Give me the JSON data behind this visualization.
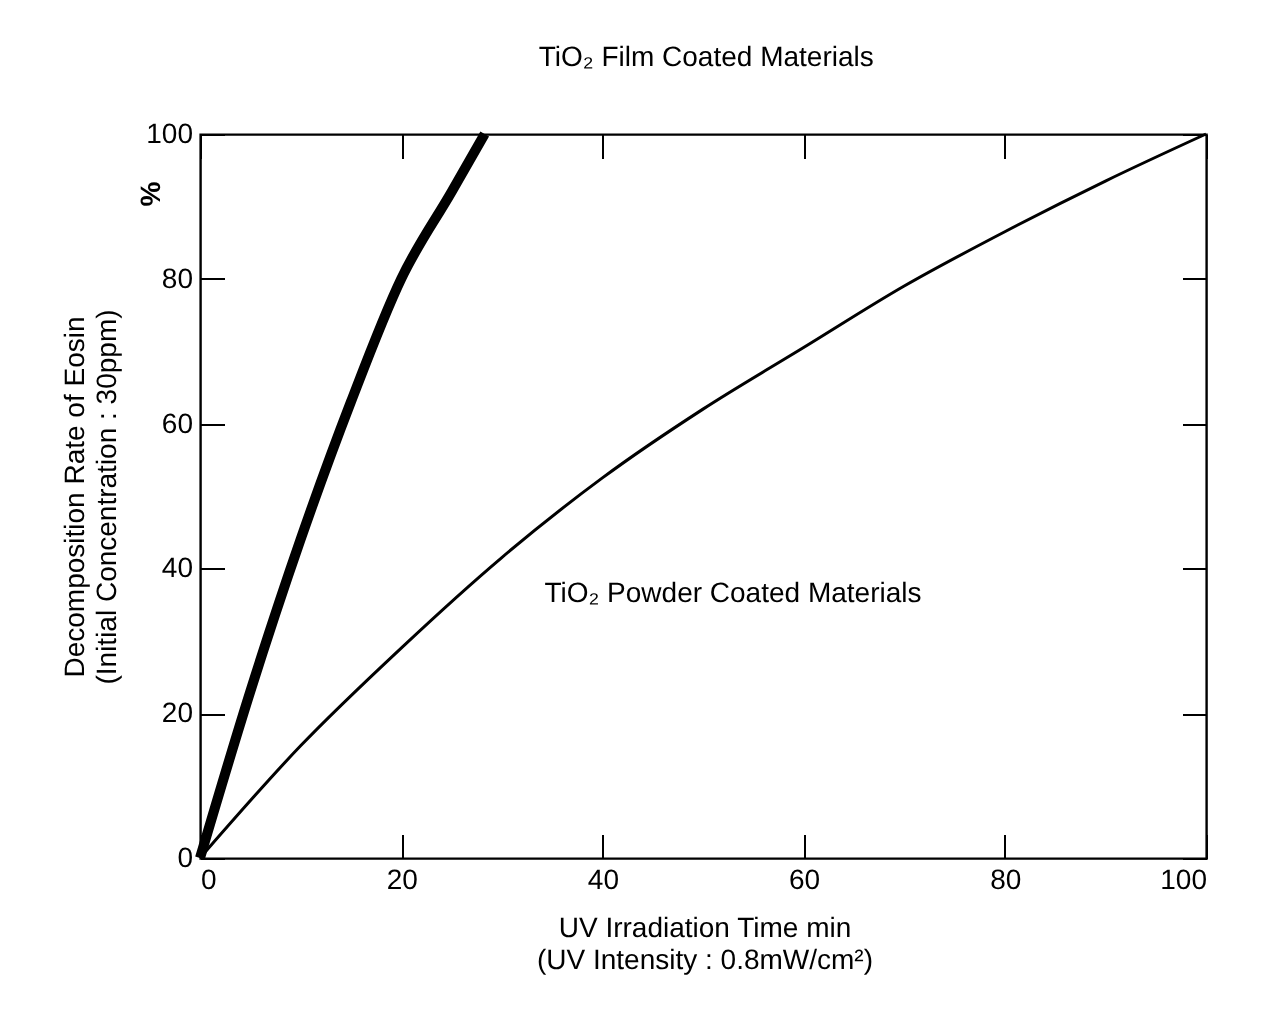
{
  "chart_data": {
    "type": "line",
    "xlabel": "UV Irradiation Time        min\n(UV Intensity : 0.8mW/cm²)",
    "ylabel": "Decomposition Rate of Eosin\n(Initial Concentration : 30ppm)",
    "annotations": [
      "%"
    ],
    "xlim": [
      0,
      100
    ],
    "xticks": [
      0,
      20,
      40,
      60,
      80,
      100
    ],
    "ylim": [
      0,
      100
    ],
    "yticks": [
      0,
      20,
      40,
      60,
      80,
      100
    ],
    "series": [
      {
        "name": "TiO₂ Film Coated Materials",
        "color": "#000000",
        "x": [
          0,
          5,
          10,
          15,
          20,
          25,
          28.3
        ],
        "values": [
          0,
          23,
          44,
          63,
          80,
          92,
          100
        ]
      },
      {
        "name": "TiO₂ Powder Coated Materials",
        "color": "#000000",
        "x": [
          0,
          10,
          20,
          30,
          40,
          50,
          60,
          70,
          80,
          90,
          100
        ],
        "values": [
          0,
          15.5,
          29,
          41.5,
          52.5,
          62,
          70.5,
          79,
          86.5,
          93.5,
          100
        ]
      }
    ]
  }
}
